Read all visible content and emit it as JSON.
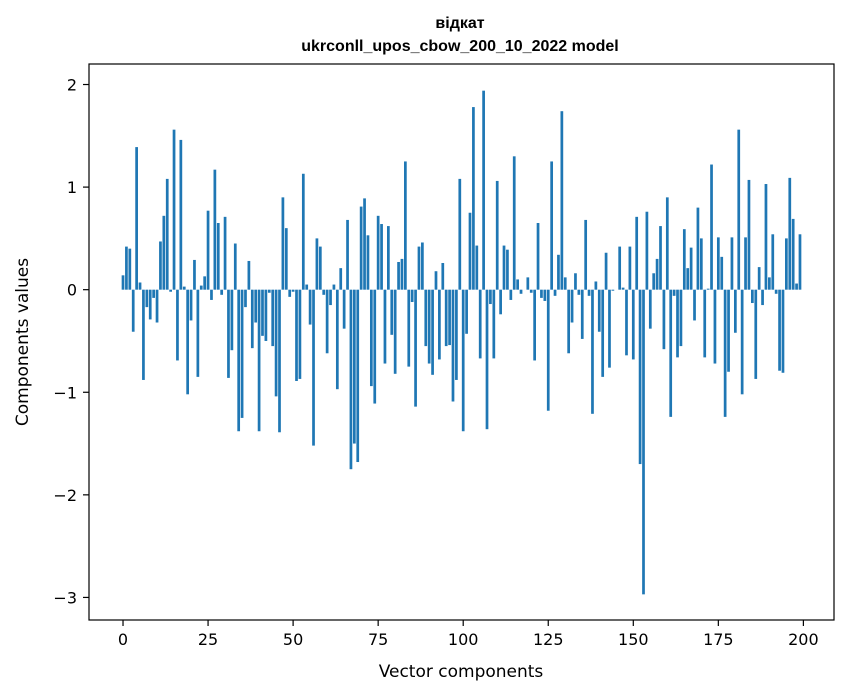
{
  "chart_data": {
    "type": "bar",
    "title": "відкат",
    "subtitle": "ukrconll_upos_cbow_200_10_2022 model",
    "xlabel": "Vector components",
    "ylabel": "Components values",
    "xlim": [
      -10,
      209
    ],
    "ylim": [
      -3.22,
      2.2
    ],
    "xticks": [
      0,
      25,
      50,
      75,
      100,
      125,
      150,
      175,
      200
    ],
    "xtick_labels": [
      "0",
      "25",
      "50",
      "75",
      "100",
      "125",
      "150",
      "175",
      "200"
    ],
    "yticks": [
      -3,
      -2,
      -1,
      0,
      1,
      2
    ],
    "ytick_labels": [
      "−3",
      "−2",
      "−1",
      "0",
      "1",
      "2"
    ],
    "grid": false,
    "bar_color": "#1f77b4",
    "x": [
      0,
      1,
      2,
      3,
      4,
      5,
      6,
      7,
      8,
      9,
      10,
      11,
      12,
      13,
      14,
      15,
      16,
      17,
      18,
      19,
      20,
      21,
      22,
      23,
      24,
      25,
      26,
      27,
      28,
      29,
      30,
      31,
      32,
      33,
      34,
      35,
      36,
      37,
      38,
      39,
      40,
      41,
      42,
      43,
      44,
      45,
      46,
      47,
      48,
      49,
      50,
      51,
      52,
      53,
      54,
      55,
      56,
      57,
      58,
      59,
      60,
      61,
      62,
      63,
      64,
      65,
      66,
      67,
      68,
      69,
      70,
      71,
      72,
      73,
      74,
      75,
      76,
      77,
      78,
      79,
      80,
      81,
      82,
      83,
      84,
      85,
      86,
      87,
      88,
      89,
      90,
      91,
      92,
      93,
      94,
      95,
      96,
      97,
      98,
      99,
      100,
      101,
      102,
      103,
      104,
      105,
      106,
      107,
      108,
      109,
      110,
      111,
      112,
      113,
      114,
      115,
      116,
      117,
      118,
      119,
      120,
      121,
      122,
      123,
      124,
      125,
      126,
      127,
      128,
      129,
      130,
      131,
      132,
      133,
      134,
      135,
      136,
      137,
      138,
      139,
      140,
      141,
      142,
      143,
      144,
      145,
      146,
      147,
      148,
      149,
      150,
      151,
      152,
      153,
      154,
      155,
      156,
      157,
      158,
      159,
      160,
      161,
      162,
      163,
      164,
      165,
      166,
      167,
      168,
      169,
      170,
      171,
      172,
      173,
      174,
      175,
      176,
      177,
      178,
      179,
      180,
      181,
      182,
      183,
      184,
      185,
      186,
      187,
      188,
      189,
      190,
      191,
      192,
      193,
      194,
      195,
      196,
      197,
      198,
      199
    ],
    "values": [
      0.14,
      0.42,
      0.4,
      -0.41,
      1.39,
      0.07,
      -0.88,
      -0.17,
      -0.29,
      -0.08,
      -0.32,
      0.47,
      0.72,
      1.08,
      -0.02,
      1.56,
      -0.69,
      1.46,
      0.03,
      -1.02,
      -0.3,
      0.29,
      -0.85,
      0.04,
      0.13,
      0.77,
      -0.1,
      1.17,
      0.65,
      -0.05,
      0.71,
      -0.86,
      -0.59,
      0.45,
      -1.38,
      -1.25,
      -0.17,
      0.28,
      -0.57,
      -0.32,
      -1.38,
      -0.45,
      -0.5,
      -0.03,
      -0.55,
      -1.04,
      -1.39,
      0.9,
      0.6,
      -0.07,
      -0.02,
      -0.89,
      -0.87,
      1.13,
      0.05,
      -0.34,
      -1.52,
      0.5,
      0.42,
      -0.05,
      -0.62,
      -0.15,
      0.05,
      -0.97,
      0.21,
      -0.38,
      0.68,
      -1.75,
      -1.5,
      -1.68,
      0.81,
      0.89,
      0.53,
      -0.94,
      -1.11,
      0.72,
      0.64,
      -0.72,
      0.62,
      -0.44,
      -0.82,
      0.27,
      0.3,
      1.25,
      -0.75,
      -0.12,
      -1.14,
      0.42,
      0.46,
      -0.55,
      -0.72,
      -0.83,
      0.18,
      -0.68,
      0.26,
      -0.55,
      -0.54,
      -1.09,
      -0.88,
      1.08,
      -1.38,
      -0.43,
      0.75,
      1.78,
      0.43,
      -0.67,
      1.94,
      -1.36,
      -0.14,
      -0.67,
      1.06,
      -0.24,
      0.43,
      0.39,
      -0.1,
      1.3,
      0.1,
      -0.04,
      0.0,
      0.12,
      -0.03,
      -0.69,
      0.65,
      -0.08,
      -0.11,
      -1.18,
      1.25,
      -0.06,
      0.34,
      1.74,
      0.12,
      -0.62,
      -0.32,
      0.16,
      -0.05,
      -0.48,
      0.68,
      -0.06,
      -1.21,
      0.08,
      -0.41,
      -0.85,
      0.36,
      -0.76,
      -0.01,
      0.0,
      0.42,
      0.02,
      -0.64,
      0.42,
      -0.68,
      0.71,
      -1.7,
      -2.97,
      0.76,
      -0.38,
      0.16,
      0.3,
      0.62,
      -0.58,
      0.9,
      -1.24,
      -0.06,
      -0.66,
      -0.55,
      0.59,
      0.21,
      0.41,
      -0.3,
      0.8,
      0.5,
      -0.66,
      0.01,
      1.22,
      -0.72,
      0.51,
      0.32,
      -1.24,
      -0.8,
      0.51,
      -0.42,
      1.56,
      -1.02,
      0.51,
      1.07,
      -0.13,
      -0.87,
      0.22,
      -0.15,
      1.03,
      0.12,
      0.54,
      -0.04,
      -0.79,
      -0.81,
      0.5,
      1.09,
      0.69,
      0.06,
      0.54
    ]
  }
}
